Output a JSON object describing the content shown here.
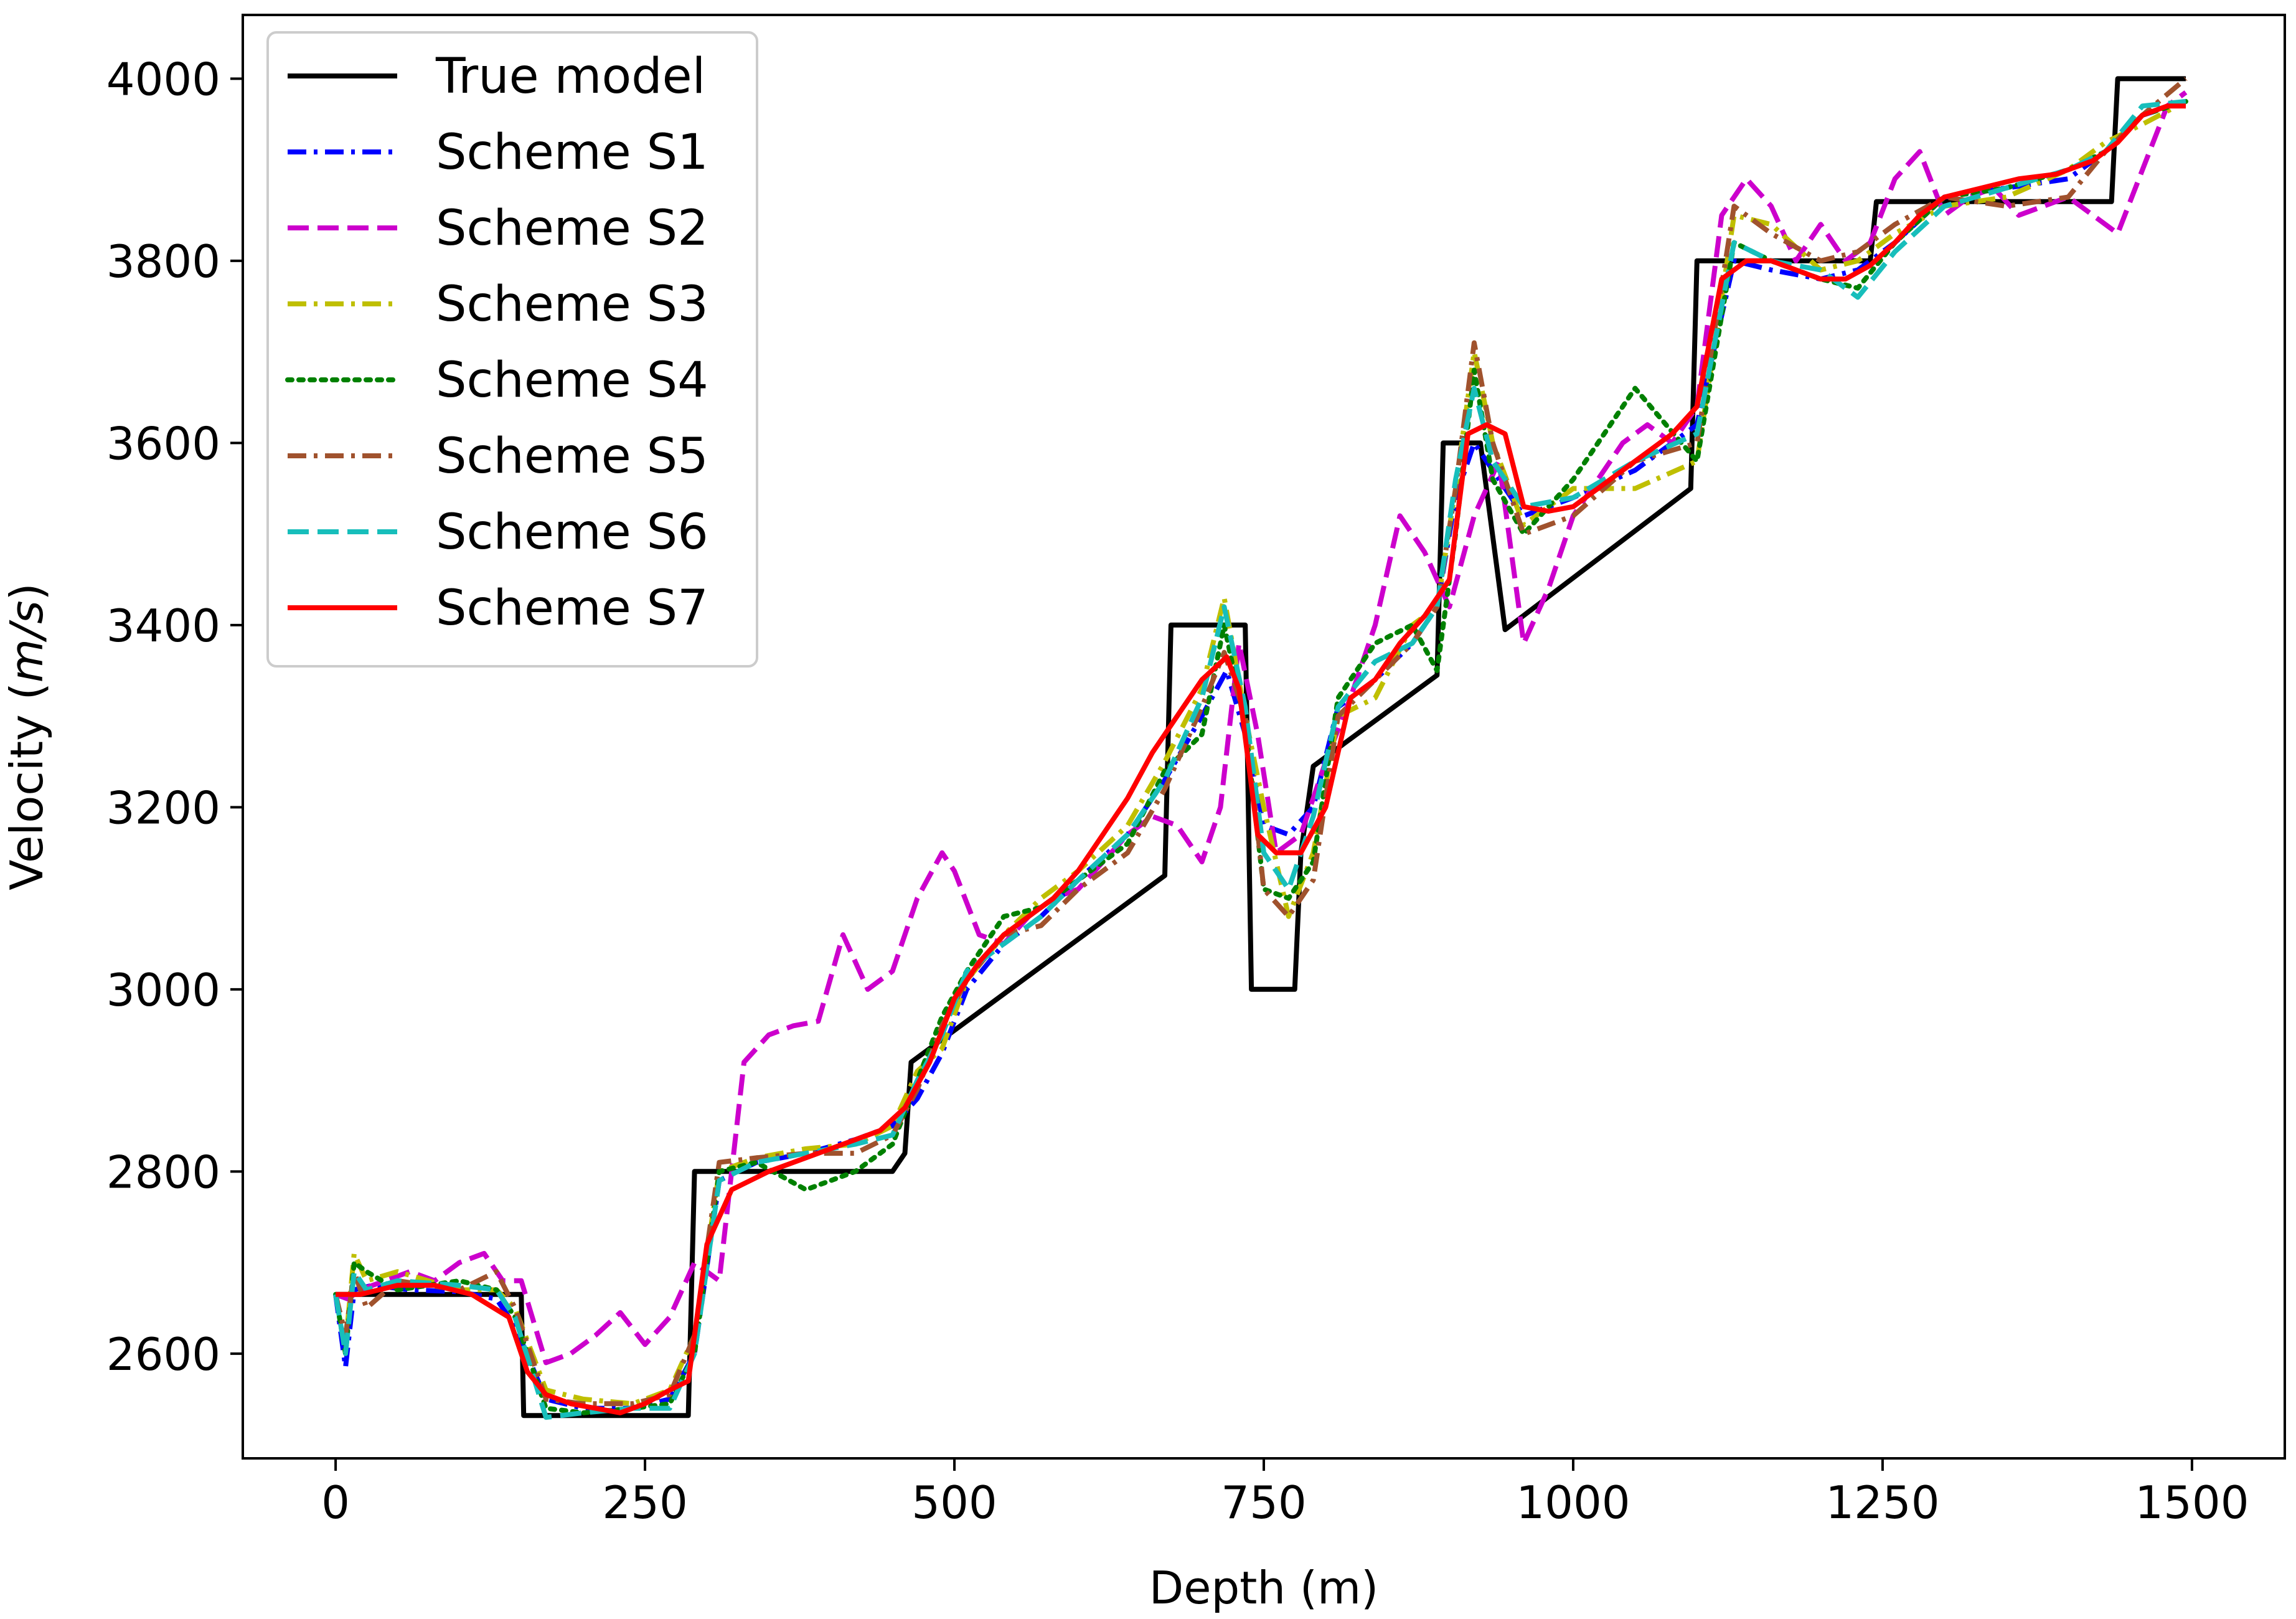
{
  "chart_data": {
    "type": "line",
    "title": "",
    "xlabel": "Depth (m)",
    "ylabel_main": "Velocity (",
    "ylabel_italic": "m/s",
    "ylabel_close": ")",
    "xlim": [
      -75,
      1575
    ],
    "ylim": [
      2485,
      4070
    ],
    "x_ticks": [
      0,
      250,
      500,
      750,
      1000,
      1250,
      1500
    ],
    "y_ticks": [
      2600,
      2800,
      3000,
      3200,
      3400,
      3600,
      3800,
      4000
    ],
    "x_tick_labels": [
      "0",
      "250",
      "500",
      "750",
      "1000",
      "1250",
      "1500"
    ],
    "y_tick_labels": [
      "2600",
      "2800",
      "3000",
      "3200",
      "3400",
      "3600",
      "3800",
      "4000"
    ],
    "grid": false,
    "legend_position": "top-left",
    "series": [
      {
        "name": "True model",
        "color": "#000000",
        "dash": "solid",
        "x": [
          0,
          150,
          152,
          285,
          290,
          450,
          460,
          465,
          670,
          675,
          735,
          740,
          775,
          780,
          790,
          890,
          895,
          925,
          945,
          1095,
          1100,
          1135,
          1240,
          1245,
          1435,
          1440,
          1495
        ],
        "y": [
          2665,
          2665,
          2532,
          2532,
          2800,
          2800,
          2820,
          2920,
          3125,
          3400,
          3400,
          3000,
          3000,
          3150,
          3245,
          3345,
          3600,
          3600,
          3395,
          3550,
          3800,
          3800,
          3800,
          3865,
          3865,
          4000,
          4000
        ]
      },
      {
        "name": "Scheme S1",
        "color": "#0000ff",
        "dash": "dashdot",
        "x": [
          0,
          8,
          15,
          30,
          60,
          100,
          130,
          145,
          170,
          200,
          240,
          270,
          290,
          310,
          340,
          380,
          420,
          450,
          470,
          490,
          510,
          540,
          570,
          600,
          640,
          670,
          700,
          720,
          735,
          750,
          770,
          790,
          810,
          840,
          870,
          890,
          905,
          920,
          935,
          960,
          1000,
          1050,
          1100,
          1130,
          1160,
          1200,
          1230,
          1260,
          1300,
          1350,
          1400,
          1430,
          1460,
          1495
        ],
        "y": [
          2665,
          2585,
          2670,
          2675,
          2670,
          2668,
          2660,
          2630,
          2550,
          2540,
          2540,
          2550,
          2600,
          2790,
          2810,
          2820,
          2835,
          2850,
          2880,
          2930,
          3000,
          3050,
          3080,
          3120,
          3170,
          3230,
          3300,
          3350,
          3280,
          3180,
          3170,
          3200,
          3310,
          3340,
          3380,
          3420,
          3540,
          3600,
          3570,
          3520,
          3540,
          3570,
          3620,
          3800,
          3790,
          3780,
          3790,
          3820,
          3870,
          3880,
          3890,
          3920,
          3960,
          3975
        ]
      },
      {
        "name": "Scheme S2",
        "color": "#cc00cc",
        "dash": "dashed",
        "x": [
          0,
          10,
          20,
          40,
          60,
          80,
          100,
          120,
          135,
          150,
          170,
          190,
          210,
          230,
          250,
          270,
          290,
          310,
          330,
          350,
          370,
          390,
          410,
          430,
          450,
          470,
          490,
          500,
          520,
          540,
          560,
          580,
          600,
          620,
          640,
          660,
          680,
          700,
          715,
          730,
          745,
          760,
          780,
          800,
          820,
          840,
          860,
          880,
          900,
          920,
          940,
          960,
          980,
          1000,
          1020,
          1040,
          1060,
          1080,
          1100,
          1120,
          1140,
          1160,
          1180,
          1200,
          1220,
          1240,
          1260,
          1280,
          1300,
          1320,
          1340,
          1360,
          1380,
          1400,
          1420,
          1440,
          1460,
          1480,
          1495
        ],
        "y": [
          2665,
          2660,
          2670,
          2680,
          2690,
          2680,
          2700,
          2710,
          2680,
          2680,
          2590,
          2600,
          2620,
          2645,
          2610,
          2640,
          2700,
          2680,
          2920,
          2950,
          2960,
          2965,
          3060,
          3000,
          3020,
          3100,
          3150,
          3130,
          3060,
          3050,
          3080,
          3100,
          3110,
          3140,
          3170,
          3190,
          3180,
          3140,
          3200,
          3380,
          3280,
          3150,
          3170,
          3250,
          3320,
          3400,
          3520,
          3480,
          3420,
          3520,
          3580,
          3380,
          3440,
          3520,
          3560,
          3600,
          3620,
          3600,
          3640,
          3850,
          3890,
          3860,
          3800,
          3840,
          3800,
          3820,
          3890,
          3920,
          3850,
          3870,
          3880,
          3850,
          3860,
          3870,
          3850,
          3830,
          3900,
          3970,
          3985
        ]
      },
      {
        "name": "Scheme S3",
        "color": "#bfbf00",
        "dash": "dashdot",
        "x": [
          0,
          8,
          15,
          25,
          50,
          100,
          130,
          145,
          170,
          200,
          240,
          270,
          290,
          310,
          340,
          380,
          420,
          450,
          470,
          490,
          510,
          540,
          570,
          600,
          640,
          670,
          700,
          718,
          735,
          750,
          770,
          790,
          810,
          840,
          870,
          890,
          905,
          920,
          935,
          960,
          1000,
          1050,
          1100,
          1130,
          1160,
          1200,
          1230,
          1260,
          1300,
          1350,
          1400,
          1430,
          1460,
          1495
        ],
        "y": [
          2665,
          2610,
          2710,
          2680,
          2690,
          2670,
          2670,
          2650,
          2560,
          2550,
          2545,
          2560,
          2620,
          2800,
          2815,
          2825,
          2830,
          2850,
          2910,
          2935,
          3010,
          3060,
          3100,
          3130,
          3180,
          3250,
          3330,
          3430,
          3300,
          3200,
          3080,
          3150,
          3300,
          3320,
          3400,
          3420,
          3550,
          3700,
          3600,
          3510,
          3550,
          3550,
          3580,
          3850,
          3840,
          3790,
          3800,
          3830,
          3860,
          3870,
          3900,
          3930,
          3950,
          3975
        ]
      },
      {
        "name": "Scheme S4",
        "color": "#008000",
        "dash": "dotted",
        "x": [
          0,
          8,
          15,
          25,
          50,
          100,
          130,
          145,
          170,
          200,
          240,
          270,
          290,
          310,
          340,
          380,
          420,
          450,
          470,
          490,
          510,
          540,
          570,
          600,
          640,
          670,
          700,
          718,
          735,
          750,
          770,
          790,
          810,
          840,
          870,
          890,
          905,
          920,
          935,
          960,
          1000,
          1050,
          1100,
          1130,
          1160,
          1200,
          1230,
          1260,
          1300,
          1350,
          1400,
          1430,
          1460,
          1495
        ],
        "y": [
          2665,
          2600,
          2700,
          2690,
          2670,
          2680,
          2670,
          2640,
          2540,
          2535,
          2540,
          2545,
          2600,
          2800,
          2810,
          2780,
          2800,
          2830,
          2900,
          2970,
          3020,
          3080,
          3090,
          3120,
          3160,
          3240,
          3280,
          3400,
          3290,
          3110,
          3100,
          3140,
          3320,
          3380,
          3400,
          3350,
          3500,
          3680,
          3560,
          3500,
          3560,
          3660,
          3580,
          3820,
          3800,
          3780,
          3770,
          3820,
          3870,
          3880,
          3900,
          3920,
          3960,
          3975
        ]
      },
      {
        "name": "Scheme S5",
        "color": "#a0522d",
        "dash": "dashdot",
        "x": [
          0,
          8,
          15,
          25,
          50,
          100,
          130,
          145,
          170,
          200,
          240,
          270,
          290,
          310,
          340,
          380,
          420,
          450,
          470,
          490,
          510,
          540,
          570,
          600,
          640,
          670,
          700,
          718,
          735,
          750,
          770,
          790,
          810,
          840,
          870,
          890,
          905,
          920,
          935,
          960,
          1000,
          1050,
          1100,
          1130,
          1160,
          1200,
          1230,
          1260,
          1300,
          1350,
          1400,
          1430,
          1460,
          1495
        ],
        "y": [
          2665,
          2620,
          2690,
          2650,
          2680,
          2670,
          2690,
          2650,
          2550,
          2545,
          2545,
          2555,
          2620,
          2810,
          2815,
          2820,
          2820,
          2840,
          2890,
          2960,
          3010,
          3060,
          3070,
          3110,
          3150,
          3220,
          3310,
          3370,
          3300,
          3110,
          3080,
          3120,
          3300,
          3340,
          3380,
          3420,
          3550,
          3710,
          3600,
          3500,
          3520,
          3580,
          3600,
          3860,
          3830,
          3800,
          3810,
          3840,
          3870,
          3860,
          3870,
          3920,
          3960,
          4000
        ]
      },
      {
        "name": "Scheme S6",
        "color": "#17bebb",
        "dash": "dashed",
        "x": [
          0,
          8,
          15,
          25,
          50,
          100,
          130,
          145,
          170,
          200,
          240,
          270,
          290,
          310,
          340,
          380,
          420,
          450,
          470,
          490,
          510,
          540,
          570,
          600,
          640,
          670,
          700,
          718,
          735,
          750,
          770,
          790,
          810,
          840,
          870,
          890,
          905,
          920,
          935,
          960,
          1000,
          1050,
          1100,
          1130,
          1160,
          1200,
          1230,
          1260,
          1300,
          1350,
          1400,
          1430,
          1460,
          1495
        ],
        "y": [
          2665,
          2600,
          2690,
          2670,
          2680,
          2675,
          2670,
          2640,
          2530,
          2535,
          2540,
          2540,
          2600,
          2790,
          2810,
          2820,
          2830,
          2840,
          2900,
          2950,
          3020,
          3050,
          3080,
          3120,
          3170,
          3230,
          3320,
          3420,
          3310,
          3150,
          3110,
          3190,
          3310,
          3360,
          3380,
          3420,
          3560,
          3660,
          3580,
          3530,
          3540,
          3580,
          3610,
          3820,
          3800,
          3790,
          3760,
          3810,
          3860,
          3880,
          3900,
          3920,
          3970,
          3975
        ]
      },
      {
        "name": "Scheme S7",
        "color": "#ff0000",
        "dash": "solid",
        "x": [
          0,
          20,
          50,
          80,
          110,
          140,
          155,
          170,
          190,
          210,
          230,
          250,
          270,
          285,
          300,
          320,
          350,
          380,
          410,
          440,
          460,
          480,
          500,
          520,
          540,
          560,
          580,
          600,
          620,
          640,
          660,
          680,
          700,
          720,
          730,
          745,
          760,
          780,
          800,
          820,
          840,
          860,
          880,
          900,
          915,
          930,
          945,
          960,
          980,
          1000,
          1020,
          1050,
          1080,
          1100,
          1120,
          1140,
          1160,
          1180,
          1200,
          1220,
          1240,
          1260,
          1280,
          1300,
          1330,
          1360,
          1390,
          1420,
          1440,
          1460,
          1480,
          1495
        ],
        "y": [
          2665,
          2665,
          2675,
          2675,
          2665,
          2640,
          2580,
          2555,
          2545,
          2540,
          2535,
          2545,
          2560,
          2570,
          2720,
          2780,
          2800,
          2815,
          2830,
          2845,
          2870,
          2920,
          2990,
          3030,
          3060,
          3080,
          3100,
          3130,
          3170,
          3210,
          3260,
          3300,
          3340,
          3365,
          3330,
          3170,
          3150,
          3150,
          3200,
          3320,
          3340,
          3380,
          3410,
          3450,
          3610,
          3620,
          3610,
          3530,
          3525,
          3530,
          3550,
          3580,
          3610,
          3640,
          3780,
          3800,
          3800,
          3790,
          3780,
          3780,
          3795,
          3820,
          3850,
          3870,
          3880,
          3890,
          3895,
          3910,
          3930,
          3960,
          3970,
          3970
        ]
      }
    ]
  }
}
